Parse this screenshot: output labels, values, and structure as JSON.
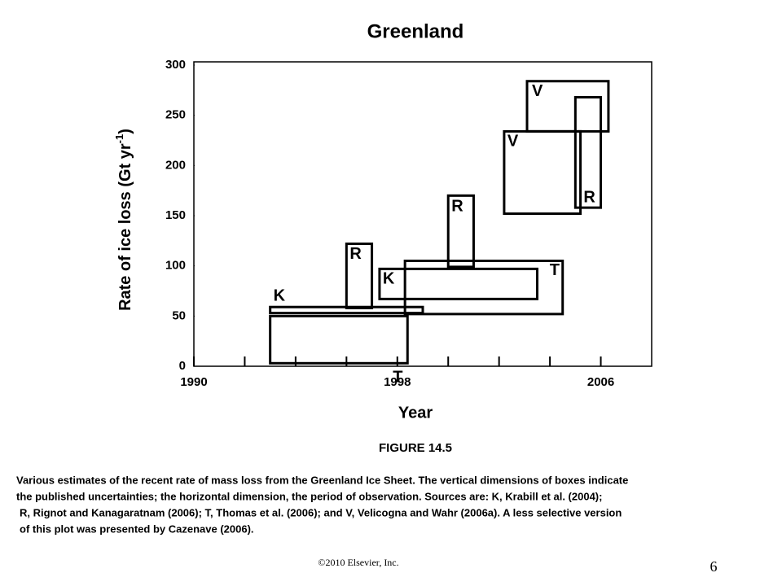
{
  "chart_data": {
    "type": "box-range",
    "title": "Greenland",
    "ylabel": {
      "main": "Rate of ice loss (Gt yr",
      "sup": "-1",
      "close": ")"
    },
    "xlabel": "Year",
    "xlim": [
      1990,
      2008
    ],
    "xticks": [
      1990,
      1998,
      2006
    ],
    "xminor_ticks": [
      1992,
      1994,
      1996,
      2000,
      2002,
      2004
    ],
    "ylim": [
      0,
      300
    ],
    "yticks": [
      0,
      50,
      100,
      150,
      200,
      250,
      300
    ],
    "color": "#000000",
    "boxes": [
      {
        "label": "K",
        "x0": 1993,
        "x1": 1999,
        "y0": 53,
        "y1": 59
      },
      {
        "label": "T",
        "x0": 1993,
        "x1": 1998.4,
        "y0": 3,
        "y1": 50
      },
      {
        "label": "R",
        "x0": 1996,
        "x1": 1997,
        "y0": 58,
        "y1": 122
      },
      {
        "label": "K",
        "x0": 1997.3,
        "x1": 2003.5,
        "y0": 67,
        "y1": 97
      },
      {
        "label": "T",
        "x0": 1998.3,
        "x1": 2004.5,
        "y0": 52,
        "y1": 105
      },
      {
        "label": "R",
        "x0": 2000,
        "x1": 2001,
        "y0": 99,
        "y1": 170
      },
      {
        "label": "V",
        "x0": 2002.2,
        "x1": 2005.2,
        "y0": 152,
        "y1": 234
      },
      {
        "label": "V",
        "x0": 2003.1,
        "x1": 2006.3,
        "y0": 234,
        "y1": 284
      },
      {
        "label": "R",
        "x0": 2005,
        "x1": 2006,
        "y0": 158,
        "y1": 268
      }
    ]
  },
  "figure_label": "FIGURE 14.5",
  "caption_lines": [
    "Various estimates of the recent rate of mass loss from the Greenland Ice Sheet. The vertical dimensions of boxes indicate",
    "the published uncertainties; the horizontal dimension, the period of observation. Sources are: K, Krabill et al. (2004);",
    "R, Rignot and Kanagaratnam (2006); T, Thomas et al. (2006); and V, Velicogna and Wahr (2006a). A less selective version",
    "of this plot was presented by Cazenave (2006)."
  ],
  "copyright": "©2010 Elsevier, Inc.",
  "page_number": 6
}
